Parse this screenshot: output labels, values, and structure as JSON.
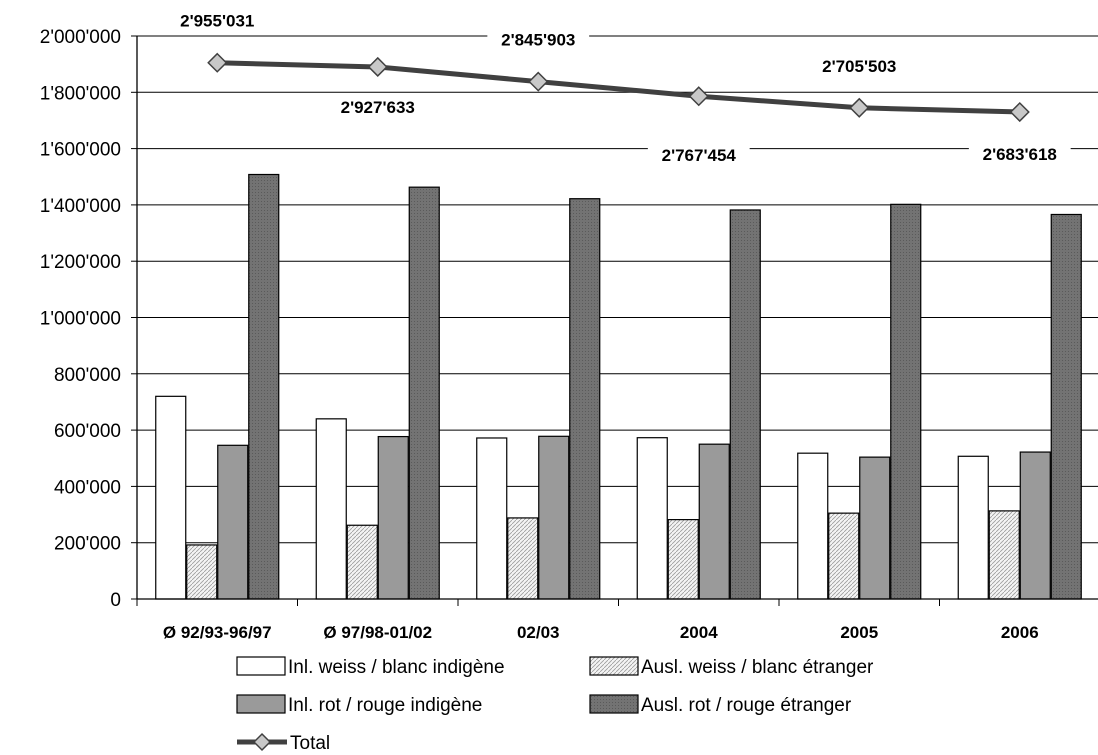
{
  "chart_data": {
    "type": "bar",
    "categories": [
      "Ø 92/93-96/97",
      "Ø 97/98-01/02",
      "02/03",
      "2004",
      "2005",
      "2006"
    ],
    "series": [
      {
        "name": "Inl. weiss / blanc indigène",
        "type": "bar",
        "values": [
          720000,
          640000,
          572000,
          573000,
          518000,
          507000
        ],
        "color": "#ffffff"
      },
      {
        "name": "Ausl. weiss / blanc étranger",
        "type": "bar",
        "values": [
          192000,
          262000,
          288000,
          282000,
          305000,
          313000
        ],
        "color": "#e4e4e4"
      },
      {
        "name": "Inl. rot / rouge indigène",
        "type": "bar",
        "values": [
          546000,
          577000,
          578000,
          550000,
          504000,
          522000
        ],
        "color": "#9a9a9a"
      },
      {
        "name": "Ausl. rot / rouge étranger",
        "type": "bar",
        "values": [
          1508000,
          1463000,
          1422000,
          1382000,
          1402000,
          1366000
        ],
        "color": "#6e6e6e"
      },
      {
        "name": "Total",
        "type": "line",
        "values": [
          1905000,
          1890000,
          1838000,
          1786000,
          1745000,
          1730000
        ],
        "labels": [
          "2'955'031",
          "2'927'633",
          "2'845'903",
          "2'767'454",
          "2'705'503",
          "2'683'618"
        ],
        "color": "#404040"
      }
    ],
    "ylim": [
      0,
      2000000
    ],
    "yticks": [
      0,
      200000,
      400000,
      600000,
      800000,
      1000000,
      1200000,
      1400000,
      1600000,
      1800000,
      2000000
    ],
    "ytick_labels": [
      "0",
      "200'000",
      "400'000",
      "600'000",
      "800'000",
      "1'000'000",
      "1'200'000",
      "1'400'000",
      "1'600'000",
      "1'800'000",
      "2'000'000"
    ],
    "xlabel": "",
    "ylabel": "",
    "title": "",
    "grid": true,
    "legend_position": "bottom"
  }
}
